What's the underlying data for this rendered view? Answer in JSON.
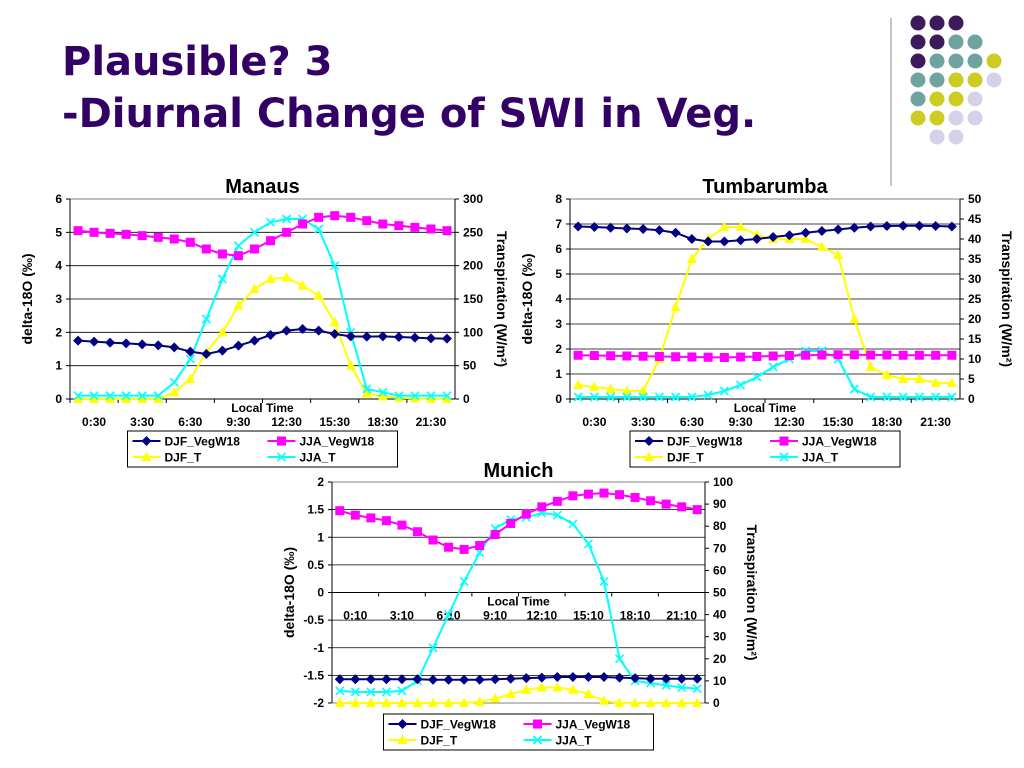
{
  "slide": {
    "title_line1": "Plausible? 3",
    "title_line2": "-Diurnal Change of SWI in Veg."
  },
  "colors": {
    "title": "#330066",
    "deco_purple": "#3D1A5B",
    "deco_teal": "#6FA3A0",
    "deco_yellow": "#CCCC22",
    "deco_lavender": "#D4D2E8",
    "DJF_VegW18": "#000080",
    "JJA_VegW18": "#FF00FF",
    "DJF_T": "#FFFF00",
    "JJA_T": "#00FFFF"
  },
  "chart_data": [
    {
      "type": "line",
      "title": "Manaus",
      "xlabel": "Local Time",
      "ylabel": "delta-18O (‰)",
      "y2label": "Transpiration (W/m²)",
      "x_tick_labels": [
        "0:30",
        "3:30",
        "6:30",
        "9:30",
        "12:30",
        "15:30",
        "18:30",
        "21:30"
      ],
      "ylim": [
        0,
        6
      ],
      "y_ticks": [
        0,
        1,
        2,
        3,
        4,
        5,
        6
      ],
      "y2lim": [
        0,
        300
      ],
      "y2_ticks": [
        0,
        50,
        100,
        150,
        200,
        250,
        300
      ],
      "legend_position": "bottom",
      "grid": true,
      "series": [
        {
          "name": "DJF_VegW18",
          "axis": "left",
          "marker": "diamond",
          "values": [
            1.75,
            1.72,
            1.69,
            1.67,
            1.64,
            1.61,
            1.55,
            1.42,
            1.35,
            1.45,
            1.6,
            1.75,
            1.92,
            2.05,
            2.1,
            2.05,
            1.95,
            1.88,
            1.87,
            1.88,
            1.86,
            1.84,
            1.82,
            1.81
          ]
        },
        {
          "name": "JJA_VegW18",
          "axis": "left",
          "marker": "square",
          "values": [
            5.05,
            5.0,
            4.97,
            4.94,
            4.9,
            4.85,
            4.8,
            4.7,
            4.5,
            4.35,
            4.3,
            4.5,
            4.75,
            5.0,
            5.25,
            5.45,
            5.5,
            5.45,
            5.35,
            5.25,
            5.2,
            5.15,
            5.1,
            5.05
          ]
        },
        {
          "name": "DJF_T",
          "axis": "right",
          "marker": "triangle",
          "values": [
            0,
            0,
            0,
            0,
            0,
            0,
            10,
            30,
            70,
            100,
            140,
            165,
            180,
            182,
            170,
            155,
            115,
            50,
            8,
            4,
            2,
            1,
            0,
            0
          ]
        },
        {
          "name": "JJA_T",
          "axis": "right",
          "marker": "cross",
          "values": [
            5,
            5,
            5,
            5,
            5,
            5,
            25,
            60,
            120,
            180,
            230,
            250,
            265,
            270,
            270,
            255,
            200,
            100,
            15,
            10,
            5,
            5,
            5,
            5
          ]
        }
      ]
    },
    {
      "type": "line",
      "title": "Tumbarumba",
      "xlabel": "Local Time",
      "ylabel": "delta-18O (‰)",
      "y2label": "Transpiration (W/m²)",
      "x_tick_labels": [
        "0:30",
        "3:30",
        "6:30",
        "9:30",
        "12:30",
        "15:30",
        "18:30",
        "21:30"
      ],
      "ylim": [
        0,
        8
      ],
      "y_ticks": [
        0,
        1,
        2,
        3,
        4,
        5,
        6,
        7,
        8
      ],
      "y2lim": [
        0,
        50
      ],
      "y2_ticks": [
        0,
        5,
        10,
        15,
        20,
        25,
        30,
        35,
        40,
        45,
        50
      ],
      "legend_position": "bottom",
      "grid": true,
      "series": [
        {
          "name": "DJF_VegW18",
          "axis": "left",
          "marker": "diamond",
          "values": [
            6.9,
            6.88,
            6.85,
            6.82,
            6.8,
            6.75,
            6.65,
            6.4,
            6.3,
            6.3,
            6.35,
            6.4,
            6.48,
            6.55,
            6.65,
            6.72,
            6.78,
            6.85,
            6.9,
            6.92,
            6.93,
            6.93,
            6.92,
            6.9
          ]
        },
        {
          "name": "JJA_VegW18",
          "axis": "left",
          "marker": "square",
          "values": [
            1.75,
            1.74,
            1.73,
            1.72,
            1.71,
            1.7,
            1.69,
            1.68,
            1.67,
            1.66,
            1.68,
            1.7,
            1.72,
            1.74,
            1.75,
            1.76,
            1.77,
            1.77,
            1.76,
            1.76,
            1.75,
            1.75,
            1.75,
            1.75
          ]
        },
        {
          "name": "DJF_T",
          "axis": "right",
          "marker": "triangle",
          "values": [
            3.5,
            3.0,
            2.5,
            2.0,
            2.0,
            10,
            23,
            35,
            40,
            43,
            43,
            41,
            40,
            40,
            40,
            38,
            36,
            20,
            8,
            6,
            5,
            5,
            4,
            4
          ]
        },
        {
          "name": "JJA_T",
          "axis": "right",
          "marker": "cross",
          "values": [
            0.5,
            0.5,
            0.5,
            0.5,
            0.5,
            0.5,
            0.5,
            0.5,
            1,
            2,
            3.5,
            5.5,
            8,
            10,
            12,
            12,
            10,
            2.5,
            0.5,
            0.5,
            0.5,
            0.5,
            0.5,
            0.5
          ]
        }
      ]
    },
    {
      "type": "line",
      "title": "Munich",
      "xlabel": "Local Time",
      "ylabel": "delta-18O (‰)",
      "y2label": "Transpiration (W/m²)",
      "x_tick_labels": [
        "0:10",
        "3:10",
        "6:10",
        "9:10",
        "12:10",
        "15:10",
        "18:10",
        "21:10"
      ],
      "ylim": [
        -2,
        2
      ],
      "y_ticks": [
        -2,
        -1.5,
        -1,
        -0.5,
        0,
        0.5,
        1,
        1.5,
        2
      ],
      "y2lim": [
        0,
        100
      ],
      "y2_ticks": [
        0,
        10,
        20,
        30,
        40,
        50,
        60,
        70,
        80,
        90,
        100
      ],
      "legend_position": "bottom",
      "grid": true,
      "series": [
        {
          "name": "DJF_VegW18",
          "axis": "left",
          "marker": "diamond",
          "values": [
            -1.57,
            -1.57,
            -1.57,
            -1.57,
            -1.57,
            -1.57,
            -1.58,
            -1.58,
            -1.58,
            -1.58,
            -1.57,
            -1.56,
            -1.55,
            -1.54,
            -1.53,
            -1.53,
            -1.53,
            -1.53,
            -1.54,
            -1.55,
            -1.56,
            -1.56,
            -1.56,
            -1.56
          ]
        },
        {
          "name": "JJA_VegW18",
          "axis": "left",
          "marker": "square",
          "values": [
            1.48,
            1.4,
            1.35,
            1.3,
            1.22,
            1.1,
            0.95,
            0.82,
            0.78,
            0.85,
            1.05,
            1.25,
            1.42,
            1.55,
            1.65,
            1.75,
            1.78,
            1.8,
            1.77,
            1.72,
            1.66,
            1.6,
            1.55,
            1.5
          ]
        },
        {
          "name": "DJF_T",
          "axis": "right",
          "marker": "triangle",
          "values": [
            0,
            0,
            0,
            0,
            0,
            0,
            0,
            0,
            0,
            0.5,
            2,
            4,
            6,
            7,
            7,
            6,
            4,
            1,
            0,
            0,
            0,
            0,
            0,
            0
          ]
        },
        {
          "name": "JJA_T",
          "axis": "right",
          "marker": "cross",
          "values": [
            5.5,
            5,
            5,
            5,
            5.5,
            10,
            25,
            40,
            55,
            68,
            79,
            83,
            84,
            86,
            85,
            81,
            72,
            55,
            20,
            10,
            9,
            8,
            7,
            6.5
          ]
        }
      ]
    }
  ]
}
